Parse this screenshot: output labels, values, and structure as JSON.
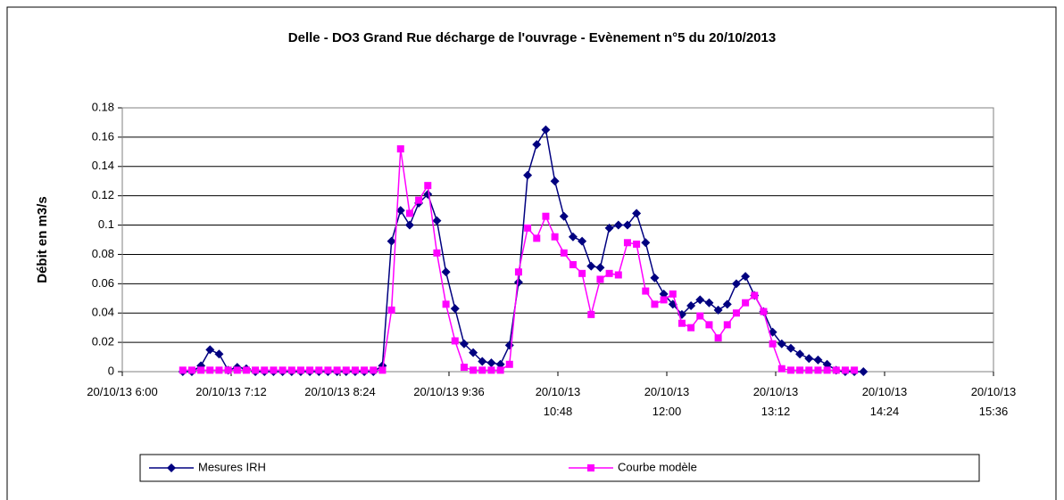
{
  "chart_data": {
    "type": "line",
    "title": "Delle - DO3 Grand Rue décharge de l'ouvrage - Evènement n°5 du 20/10/2013",
    "y_label": "Débit en m3/s",
    "x": [
      400,
      406,
      412,
      418,
      424,
      430,
      436,
      442,
      448,
      454,
      460,
      466,
      472,
      478,
      484,
      490,
      496,
      502,
      508,
      514,
      520,
      526,
      532,
      538,
      544,
      550,
      556,
      562,
      568,
      574,
      580,
      586,
      592,
      598,
      604,
      610,
      616,
      622,
      628,
      634,
      640,
      646,
      652,
      658,
      664,
      670,
      676,
      682,
      688,
      694,
      700,
      706,
      712,
      718,
      724,
      730,
      736,
      742,
      748,
      754,
      760,
      766,
      772,
      778,
      784,
      790,
      796,
      802,
      808,
      814,
      820,
      826,
      832,
      838,
      844,
      850
    ],
    "series": [
      {
        "name": "Mesures IRH",
        "color": "#000080",
        "marker": "diamond",
        "values": [
          0,
          0,
          0.004,
          0.015,
          0.012,
          0.001,
          0.003,
          0.002,
          0,
          0,
          0,
          0,
          0,
          0,
          0,
          0,
          0,
          0,
          0,
          0,
          0,
          0,
          0.004,
          0.089,
          0.11,
          0.1,
          0.115,
          0.121,
          0.103,
          0.068,
          0.043,
          0.019,
          0.013,
          0.007,
          0.006,
          0.005,
          0.018,
          0.061,
          0.134,
          0.155,
          0.165,
          0.13,
          0.106,
          0.092,
          0.089,
          0.072,
          0.071,
          0.098,
          0.1,
          0.1,
          0.108,
          0.088,
          0.064,
          0.053,
          0.046,
          0.039,
          0.045,
          0.049,
          0.047,
          0.042,
          0.046,
          0.06,
          0.065,
          0.052,
          0.041,
          0.027,
          0.019,
          0.016,
          0.012,
          0.009,
          0.008,
          0.005,
          0.001,
          0,
          0,
          0
        ]
      },
      {
        "name": "Courbe modèle",
        "color": "#ff00ff",
        "marker": "square",
        "values": [
          0.001,
          0.001,
          0.001,
          0.001,
          0.001,
          0.001,
          0.001,
          0.001,
          0.001,
          0.001,
          0.001,
          0.001,
          0.001,
          0.001,
          0.001,
          0.001,
          0.001,
          0.001,
          0.001,
          0.001,
          0.001,
          0.001,
          0.001,
          0.042,
          0.152,
          0.108,
          0.117,
          0.127,
          0.081,
          0.046,
          0.021,
          0.003,
          0.001,
          0.001,
          0.001,
          0.001,
          0.005,
          0.068,
          0.098,
          0.091,
          0.106,
          0.092,
          0.081,
          0.073,
          0.067,
          0.039,
          0.063,
          0.067,
          0.066,
          0.088,
          0.087,
          0.055,
          0.046,
          0.049,
          0.053,
          0.033,
          0.03,
          0.038,
          0.032,
          0.023,
          0.032,
          0.04,
          0.047,
          0.052,
          0.041,
          0.019,
          0.002,
          0.001,
          0.001,
          0.001,
          0.001,
          0.001,
          0.001,
          0.001,
          0.001,
          null
        ]
      }
    ],
    "xlim": [
      360,
      936
    ],
    "xticks": [
      {
        "value": 360,
        "label": "20/10/13 6:00"
      },
      {
        "value": 432,
        "label": "20/10/13 7:12"
      },
      {
        "value": 504,
        "label": "20/10/13 8:24"
      },
      {
        "value": 576,
        "label": "20/10/13 9:36"
      },
      {
        "value": 648,
        "label": "20/10/13 10:48"
      },
      {
        "value": 720,
        "label": "20/10/13 12:00"
      },
      {
        "value": 792,
        "label": "20/10/13 13:12"
      },
      {
        "value": 864,
        "label": "20/10/13 14:24"
      },
      {
        "value": 936,
        "label": "20/10/13 15:36"
      }
    ],
    "ylim": [
      0,
      0.18
    ],
    "yticks": [
      0,
      0.02,
      0.04,
      0.06,
      0.08,
      0.1,
      0.12,
      0.14,
      0.16,
      0.18
    ],
    "grid": true,
    "legend": "bottom"
  }
}
